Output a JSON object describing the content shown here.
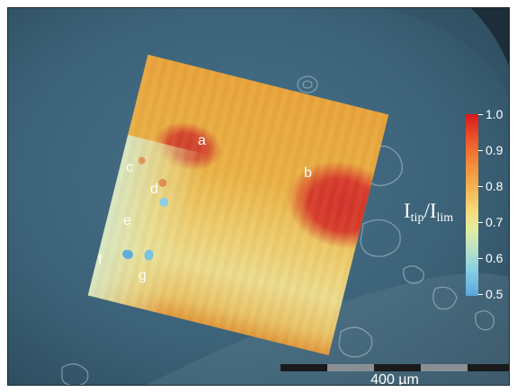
{
  "image": {
    "feature_labels": [
      "a",
      "b",
      "c",
      "d",
      "e",
      "f",
      "g"
    ],
    "colorbar": {
      "title_main": "I",
      "title_sub1": "tip",
      "title_sep": "/I",
      "title_sub2": "lim",
      "ticks": [
        "1.0",
        "0.9",
        "0.8",
        "0.7",
        "0.6",
        "0.5"
      ],
      "range": [
        0.5,
        1.0
      ],
      "colors": {
        "high": "#d7191c",
        "mid": "#f7dd7f",
        "low": "#5aa7da"
      }
    },
    "scale_bar": {
      "label": "400 µm"
    },
    "colors": {
      "background_blue": "#3e6479",
      "map_orange": "#f1b443",
      "map_red": "#d93229"
    }
  }
}
